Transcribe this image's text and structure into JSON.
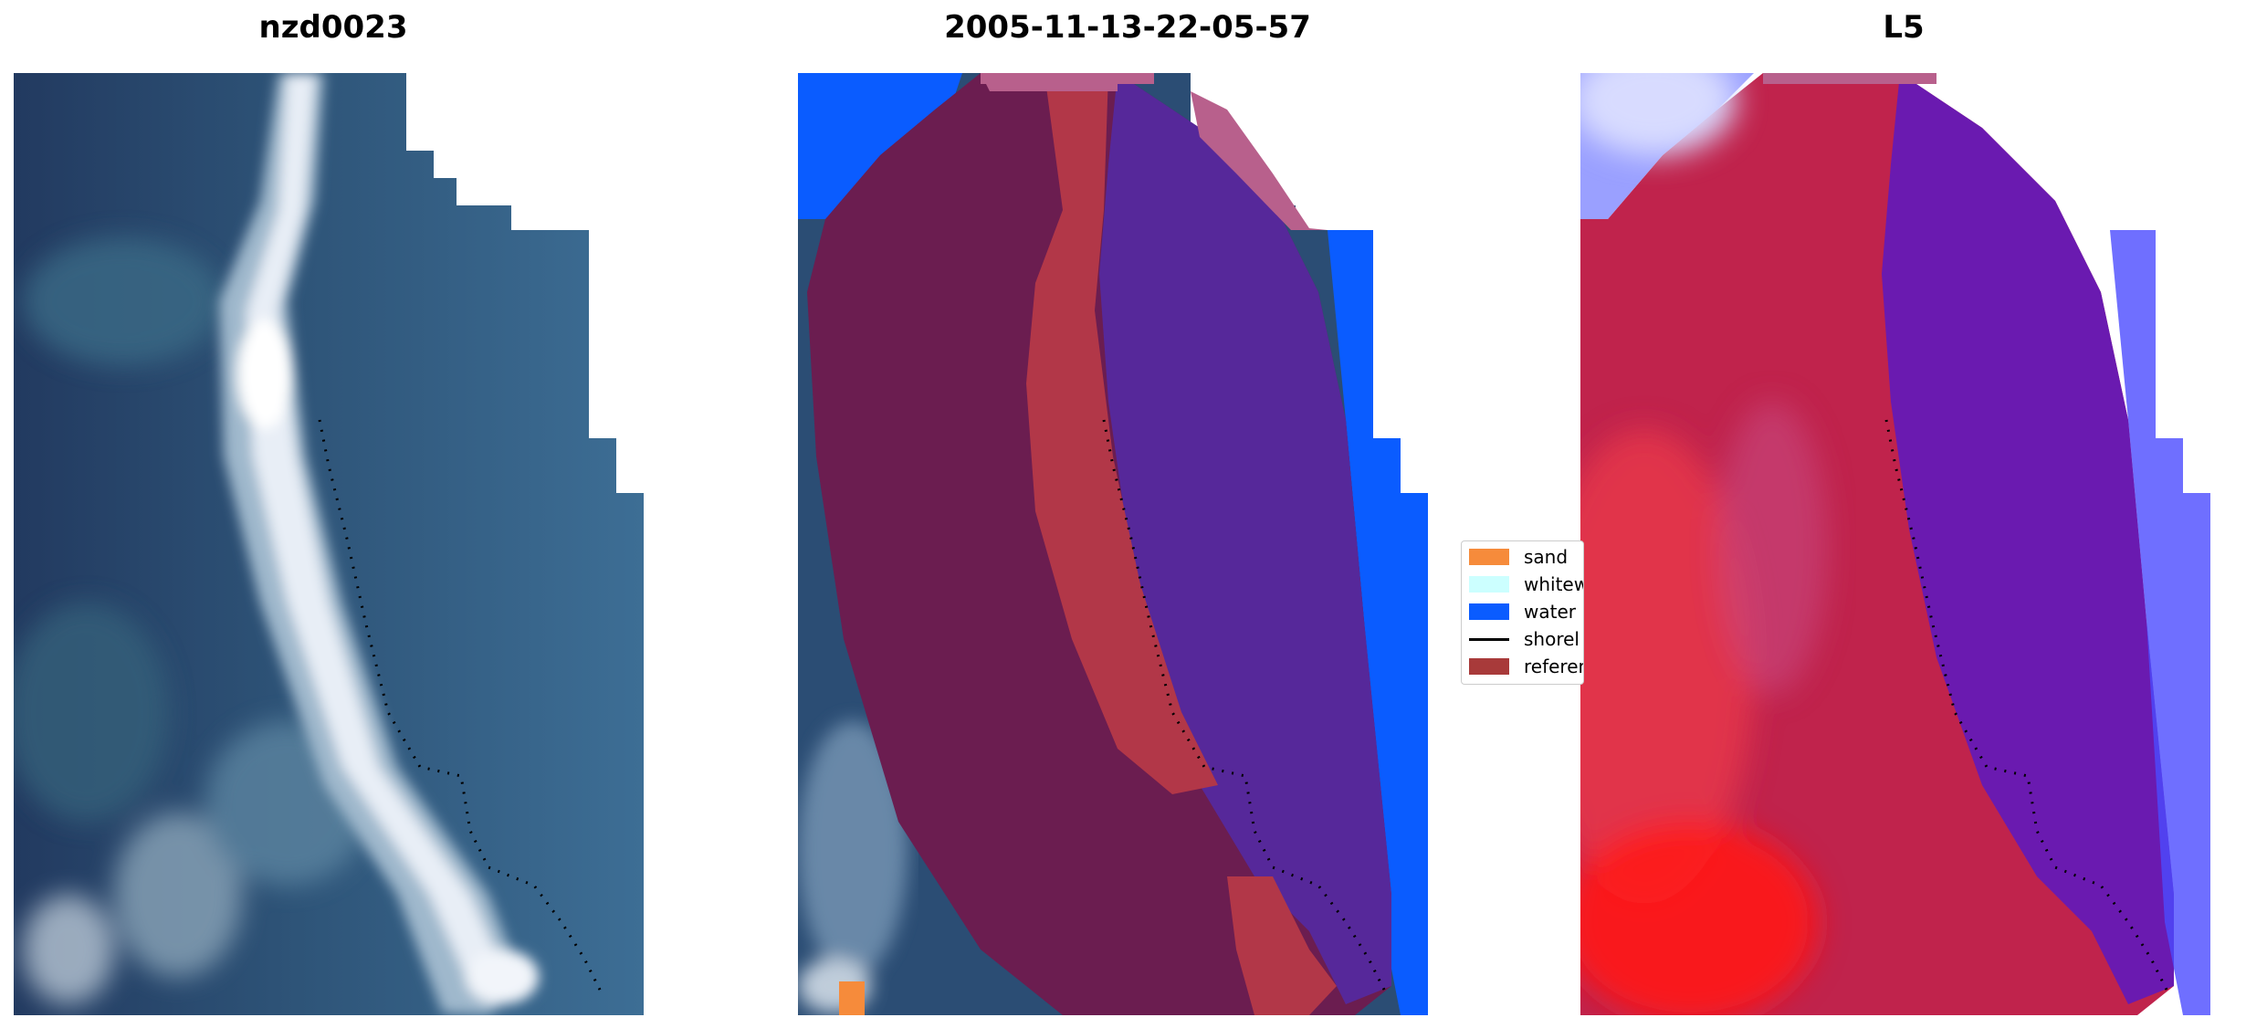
{
  "panels": [
    {
      "title": "nzd0023",
      "kind": "rgb"
    },
    {
      "title": "2005-11-13-22-05-57",
      "kind": "classified"
    },
    {
      "title": "L5",
      "kind": "index"
    }
  ],
  "legend": {
    "items": [
      {
        "label": "sand",
        "color": "#f68b3b"
      },
      {
        "label": "whitew",
        "color": "#ccffff"
      },
      {
        "label": "water",
        "color": "#0a5cff"
      },
      {
        "label": "shorel",
        "color": "#000000"
      },
      {
        "label": "referen",
        "color": "#a83a3a"
      }
    ]
  },
  "colors": {
    "water_dark": "#27496e",
    "water_mid": "#3a6690",
    "whitewater": "#dfe6f0",
    "class_purple": "#5a2a9a",
    "class_maroon": "#6e1c50",
    "class_red": "#b3334a",
    "class_pink": "#b8608c",
    "class_blue": "#0a5cff",
    "index_red": "#c21c46",
    "index_purple": "#6a1ab0"
  }
}
